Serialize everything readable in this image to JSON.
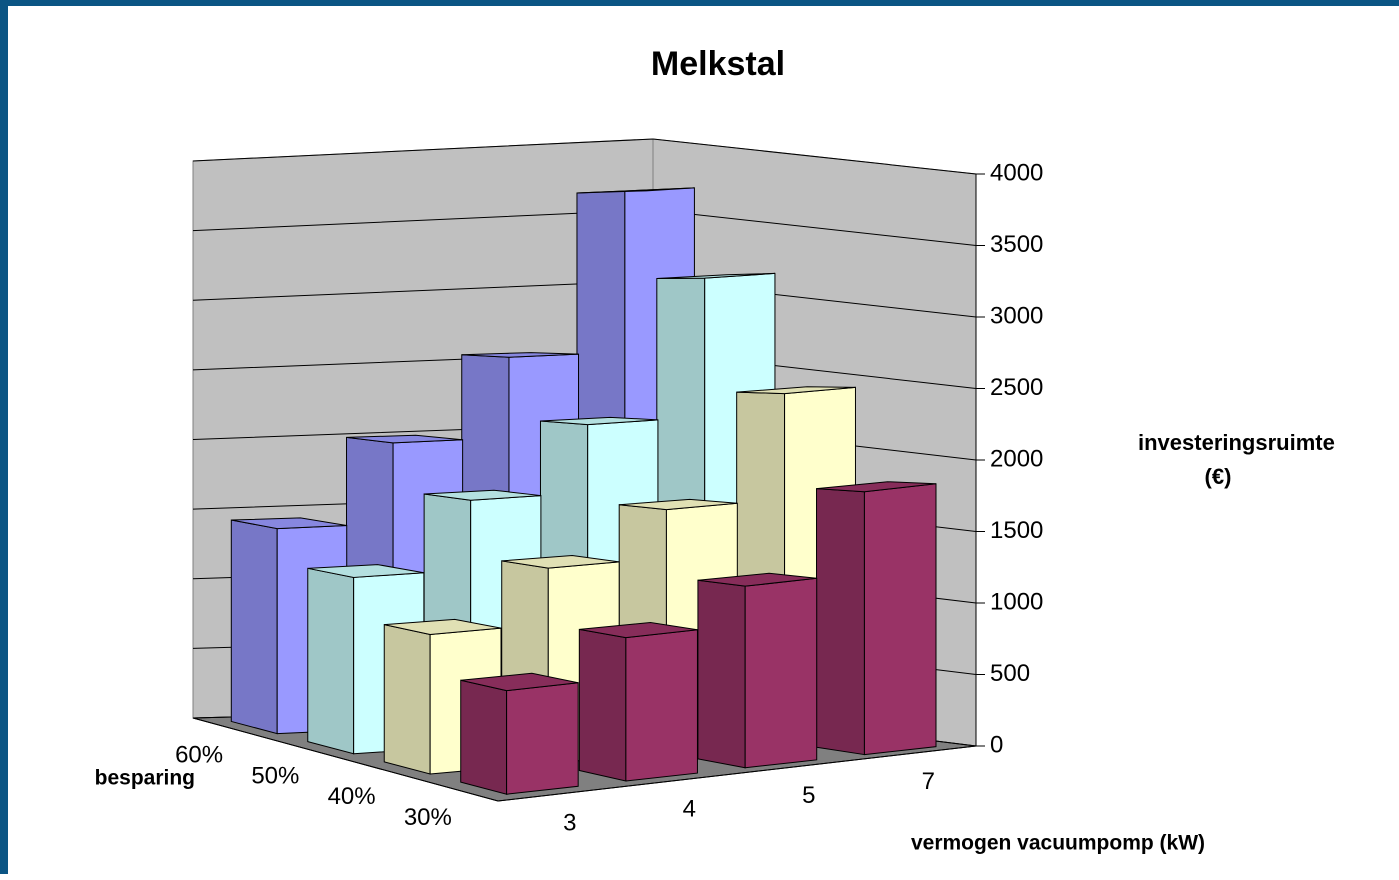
{
  "chart_data": {
    "type": "bar3d",
    "title": "Melkstal",
    "x_label": "vermogen vacuumpomp (kW)",
    "z_label": "besparing",
    "y_label": "investeringsruimte (€)",
    "categories": [
      "3",
      "4",
      "5",
      "7"
    ],
    "series": [
      {
        "name": "60%",
        "color": "#9999ff",
        "values": [
          1400,
          1950,
          2500,
          3600
        ]
      },
      {
        "name": "50%",
        "color": "#ccffff",
        "values": [
          1170,
          1630,
          2080,
          3000
        ]
      },
      {
        "name": "40%",
        "color": "#ffffcc",
        "values": [
          900,
          1260,
          1570,
          2250
        ]
      },
      {
        "name": "30%",
        "color": "#993366",
        "values": [
          650,
          900,
          1140,
          1650
        ]
      }
    ],
    "ylim": [
      0,
      4000
    ],
    "yticks": [
      0,
      500,
      1000,
      1500,
      2000,
      2500,
      3000,
      3500,
      4000
    ],
    "grid": true
  }
}
